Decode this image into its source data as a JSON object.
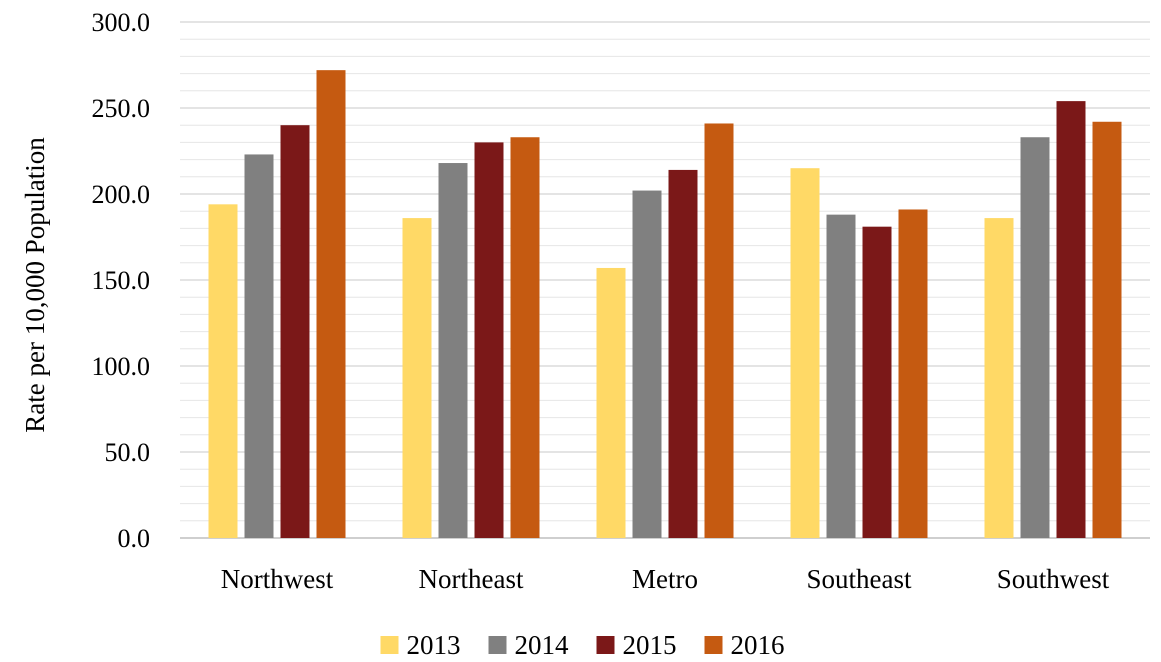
{
  "chart_data": {
    "type": "bar",
    "title": "",
    "xlabel": "",
    "ylabel": "Rate per 10,000 Population",
    "ylim": [
      0,
      300
    ],
    "yticks": [
      "0.0",
      "50.0",
      "100.0",
      "150.0",
      "200.0",
      "250.0",
      "300.0"
    ],
    "minor_grid_step": 10,
    "grid": true,
    "legend_position": "bottom",
    "categories": [
      "Northwest",
      "Northeast",
      "Metro",
      "Southeast",
      "Southwest"
    ],
    "series": [
      {
        "name": "2013",
        "color": "#FFD966",
        "values": [
          194,
          186,
          157,
          215,
          186
        ]
      },
      {
        "name": "2014",
        "color": "#808080",
        "values": [
          223,
          218,
          202,
          188,
          233
        ]
      },
      {
        "name": "2015",
        "color": "#7B1818",
        "values": [
          240,
          230,
          214,
          181,
          254
        ]
      },
      {
        "name": "2016",
        "color": "#C55A11",
        "values": [
          272,
          233,
          241,
          191,
          242
        ]
      }
    ]
  }
}
